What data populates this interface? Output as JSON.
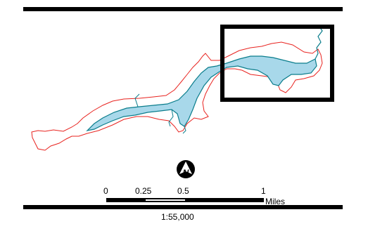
{
  "map": {
    "colors": {
      "frame": "#000000",
      "buffer_line": "#e8231f",
      "water_fill": "#a8d8ea",
      "water_outline": "#0a7d8c",
      "extent_box": "#000000"
    },
    "north_arrow": {
      "letter": "N",
      "icon": "north-arrow-icon"
    },
    "scale_bar": {
      "ticks": [
        "0",
        "0.25",
        "0.5",
        "1"
      ],
      "units": "Miles"
    },
    "scale_ratio": "1:55,000"
  }
}
